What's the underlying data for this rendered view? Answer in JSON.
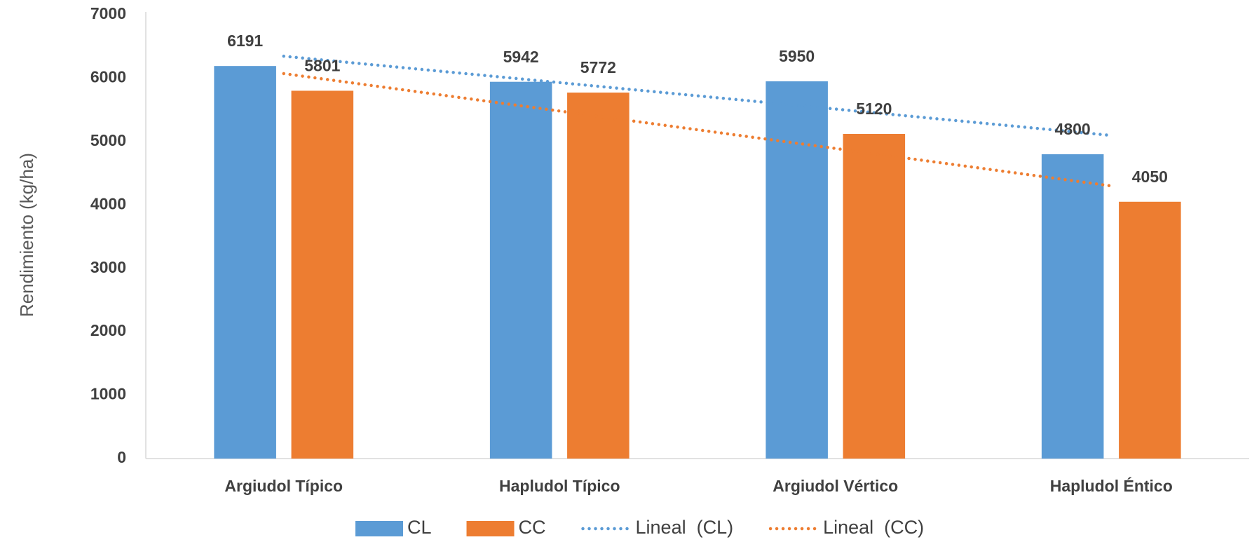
{
  "chart_data": {
    "type": "bar",
    "ylabel": "Rendimiento (kg/ha)",
    "categories": [
      "Argiudol Típico",
      "Hapludol Típico",
      "Argiudol Vértico",
      "Hapludol Éntico"
    ],
    "series": [
      {
        "name": "CL",
        "color": "#5b9bd5",
        "values": [
          6191,
          5942,
          5950,
          4800
        ],
        "trendline": "linear",
        "trendline_name": "Lineal  (CL)"
      },
      {
        "name": "CC",
        "color": "#ed7d31",
        "values": [
          5801,
          5772,
          5120,
          4050
        ],
        "trendline": "linear",
        "trendline_name": "Lineal  (CC)"
      }
    ],
    "ylim": [
      0,
      7000
    ],
    "yticks": [
      0,
      1000,
      2000,
      3000,
      4000,
      5000,
      6000,
      7000
    ],
    "grid": false,
    "data_labels": true,
    "legend": "bottom"
  }
}
